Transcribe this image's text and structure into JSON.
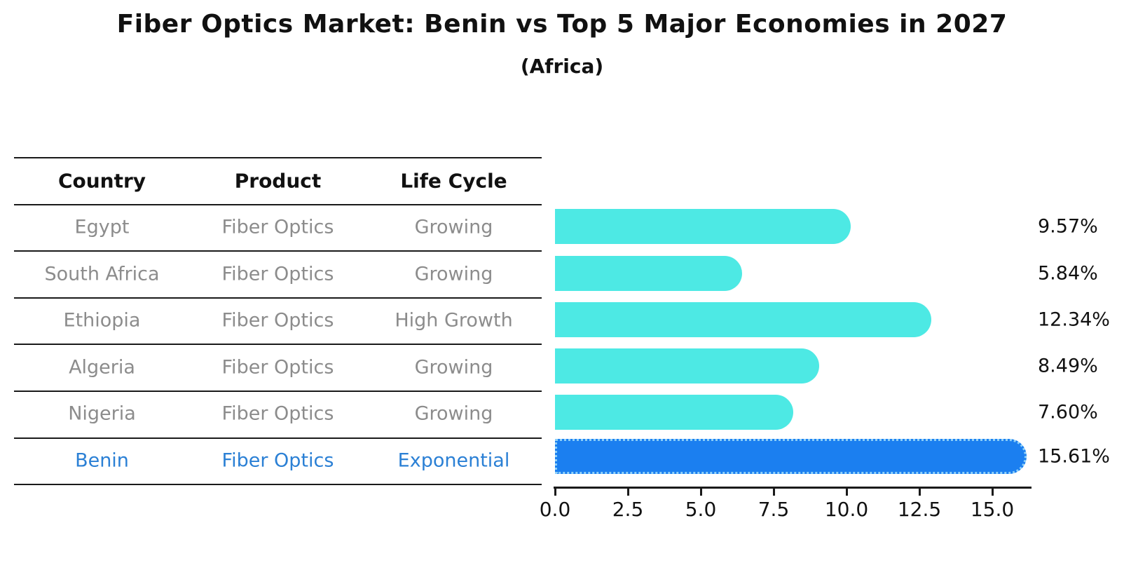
{
  "title": "Fiber Optics Market: Benin vs Top 5 Major Economies in 2027",
  "subtitle": "(Africa)",
  "table": {
    "headers": [
      "Country",
      "Product",
      "Life Cycle"
    ],
    "rows": [
      {
        "country": "Egypt",
        "product": "Fiber Optics",
        "life_cycle": "Growing",
        "highlight": false
      },
      {
        "country": "South Africa",
        "product": "Fiber Optics",
        "life_cycle": "Growing",
        "highlight": false
      },
      {
        "country": "Ethiopia",
        "product": "Fiber Optics",
        "life_cycle": "High Growth",
        "highlight": false
      },
      {
        "country": "Algeria",
        "product": "Fiber Optics",
        "life_cycle": "Growing",
        "highlight": false
      },
      {
        "country": "Nigeria",
        "product": "Fiber Optics",
        "life_cycle": "Growing",
        "highlight": false
      },
      {
        "country": "Benin",
        "product": "Fiber Optics",
        "life_cycle": "Exponential",
        "highlight": true
      }
    ]
  },
  "chart_data": {
    "type": "bar",
    "orientation": "horizontal",
    "categories": [
      "Egypt",
      "South Africa",
      "Ethiopia",
      "Algeria",
      "Nigeria",
      "Benin"
    ],
    "values": [
      9.57,
      5.84,
      12.34,
      8.49,
      7.6,
      15.61
    ],
    "value_labels": [
      "9.57%",
      "5.84%",
      "12.34%",
      "8.49%",
      "7.60%",
      "15.61%"
    ],
    "highlight_index": 5,
    "xlim": [
      0,
      16.4
    ],
    "x_ticks": [
      0.0,
      2.5,
      5.0,
      7.5,
      10.0,
      12.5,
      15.0
    ],
    "x_tick_labels": [
      "0.0",
      "2.5",
      "5.0",
      "7.5",
      "10.0",
      "12.5",
      "15.0"
    ],
    "grid": false,
    "legend": false,
    "bar_color": "#4de9e4",
    "highlight_bar_color": "#1b7ff0",
    "highlight_text_color": "#2b80d5",
    "text_color": "#8c8c8c",
    "header_text_color": "#111111"
  }
}
